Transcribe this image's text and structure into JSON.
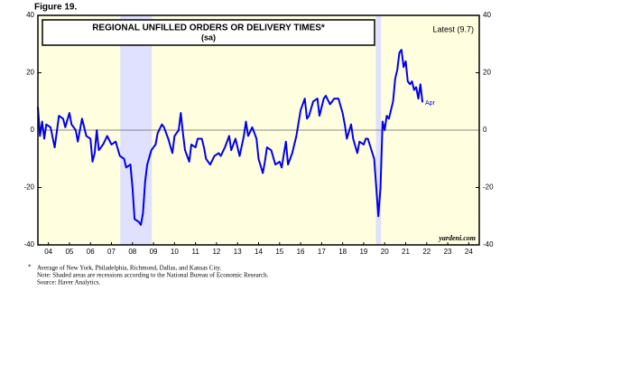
{
  "chart_data": {
    "type": "line",
    "figure_label": "Figure 19.",
    "title": "REGIONAL UNFILLED ORDERS OR DELIVERY TIMES*",
    "subtitle": "(sa)",
    "annotation_latest": "Latest (9.7)",
    "annotation_end": "Apr",
    "source_mark": "yardeni.com",
    "footnote_marker": "*",
    "notes": [
      "Average of New York, Philadelphia, Richmond, Dallas, and Kansas City.",
      "Note: Shaded areas are recessions according to the National Bureau of Economic Research.",
      "Source: Haver Analytics."
    ],
    "xlim": [
      2004,
      2025
    ],
    "xticks": [
      {
        "value": 2004.5,
        "label": "04"
      },
      {
        "value": 2005.5,
        "label": "05"
      },
      {
        "value": 2006.5,
        "label": "06"
      },
      {
        "value": 2007.5,
        "label": "07"
      },
      {
        "value": 2008.5,
        "label": "08"
      },
      {
        "value": 2009.5,
        "label": "09"
      },
      {
        "value": 2010.5,
        "label": "10"
      },
      {
        "value": 2011.5,
        "label": "11"
      },
      {
        "value": 2012.5,
        "label": "12"
      },
      {
        "value": 2013.5,
        "label": "13"
      },
      {
        "value": 2014.5,
        "label": "14"
      },
      {
        "value": 2015.5,
        "label": "15"
      },
      {
        "value": 2016.5,
        "label": "16"
      },
      {
        "value": 2017.5,
        "label": "17"
      },
      {
        "value": 2018.5,
        "label": "18"
      },
      {
        "value": 2019.5,
        "label": "19"
      },
      {
        "value": 2020.5,
        "label": "20"
      },
      {
        "value": 2021.5,
        "label": "21"
      },
      {
        "value": 2022.5,
        "label": "22"
      },
      {
        "value": 2023.5,
        "label": "23"
      },
      {
        "value": 2024.5,
        "label": "24"
      }
    ],
    "ylim": [
      -40,
      40
    ],
    "yticks": [
      -40,
      -20,
      0,
      20,
      40
    ],
    "recessions": [
      [
        2007.92,
        2009.42
      ],
      [
        2020.08,
        2020.33
      ]
    ],
    "background_color": "#ffffe0",
    "recession_color": "#e0e0ff",
    "series": [
      {
        "name": "Regional unfilled orders or delivery times",
        "color": "#0000ee",
        "x": [
          2004.0,
          2004.1,
          2004.2,
          2004.3,
          2004.4,
          2004.6,
          2004.8,
          2005.0,
          2005.2,
          2005.3,
          2005.5,
          2005.6,
          2005.8,
          2005.9,
          2006.1,
          2006.3,
          2006.5,
          2006.6,
          2006.7,
          2006.8,
          2006.9,
          2007.1,
          2007.3,
          2007.5,
          2007.7,
          2007.9,
          2008.1,
          2008.2,
          2008.4,
          2008.5,
          2008.6,
          2008.8,
          2008.9,
          2009.0,
          2009.1,
          2009.2,
          2009.4,
          2009.6,
          2009.7,
          2009.9,
          2010.0,
          2010.2,
          2010.4,
          2010.5,
          2010.7,
          2010.8,
          2010.9,
          2011.0,
          2011.2,
          2011.3,
          2011.5,
          2011.6,
          2011.8,
          2011.9,
          2012.0,
          2012.2,
          2012.4,
          2012.6,
          2012.7,
          2012.9,
          2013.1,
          2013.2,
          2013.4,
          2013.6,
          2013.8,
          2013.9,
          2014.0,
          2014.2,
          2014.4,
          2014.5,
          2014.7,
          2014.8,
          2014.9,
          2015.1,
          2015.3,
          2015.5,
          2015.6,
          2015.8,
          2015.9,
          2016.1,
          2016.3,
          2016.5,
          2016.7,
          2016.8,
          2016.9,
          2017.1,
          2017.3,
          2017.4,
          2017.6,
          2017.7,
          2017.9,
          2018.1,
          2018.3,
          2018.5,
          2018.6,
          2018.7,
          2018.9,
          2019.0,
          2019.2,
          2019.3,
          2019.5,
          2019.6,
          2019.7,
          2020.0,
          2020.2,
          2020.3,
          2020.4,
          2020.5,
          2020.6,
          2020.7,
          2020.8,
          2020.9,
          2021.0,
          2021.1,
          2021.2,
          2021.3,
          2021.4,
          2021.5,
          2021.6,
          2021.7,
          2021.8,
          2021.9,
          2022.0,
          2022.1,
          2022.2,
          2022.3
        ],
        "values": [
          8,
          -2,
          3,
          -3,
          2,
          1,
          -6,
          5,
          4,
          1,
          6,
          2,
          0,
          -4,
          4,
          -2,
          -3,
          -11,
          -8,
          0,
          -7,
          -5,
          -2,
          -5,
          -4,
          -9,
          -10,
          -13,
          -12,
          -20,
          -31,
          -32,
          -33,
          -29,
          -18,
          -12,
          -7,
          -5,
          -1,
          2,
          1,
          -3,
          -8,
          -2,
          0,
          6,
          -1,
          -7,
          -11,
          -5,
          -6,
          -3,
          -3,
          -6,
          -10,
          -12,
          -9,
          -8,
          -9,
          -6,
          -2,
          -7,
          -3,
          -9,
          -2,
          3,
          -2,
          1,
          -3,
          -10,
          -15,
          -11,
          -6,
          -7,
          -12,
          -11,
          -13,
          -4,
          -12,
          -8,
          -2,
          7,
          11,
          4,
          5,
          10,
          11,
          5,
          11,
          12,
          9,
          11,
          11,
          6,
          2,
          -3,
          2,
          -3,
          -8,
          -4,
          -5,
          -3,
          -3,
          -10,
          -30,
          -20,
          3,
          0,
          5,
          4,
          7,
          10,
          18,
          21,
          27,
          28,
          22,
          24,
          17,
          16,
          17,
          14,
          15,
          11,
          16,
          9.7
        ]
      }
    ]
  }
}
